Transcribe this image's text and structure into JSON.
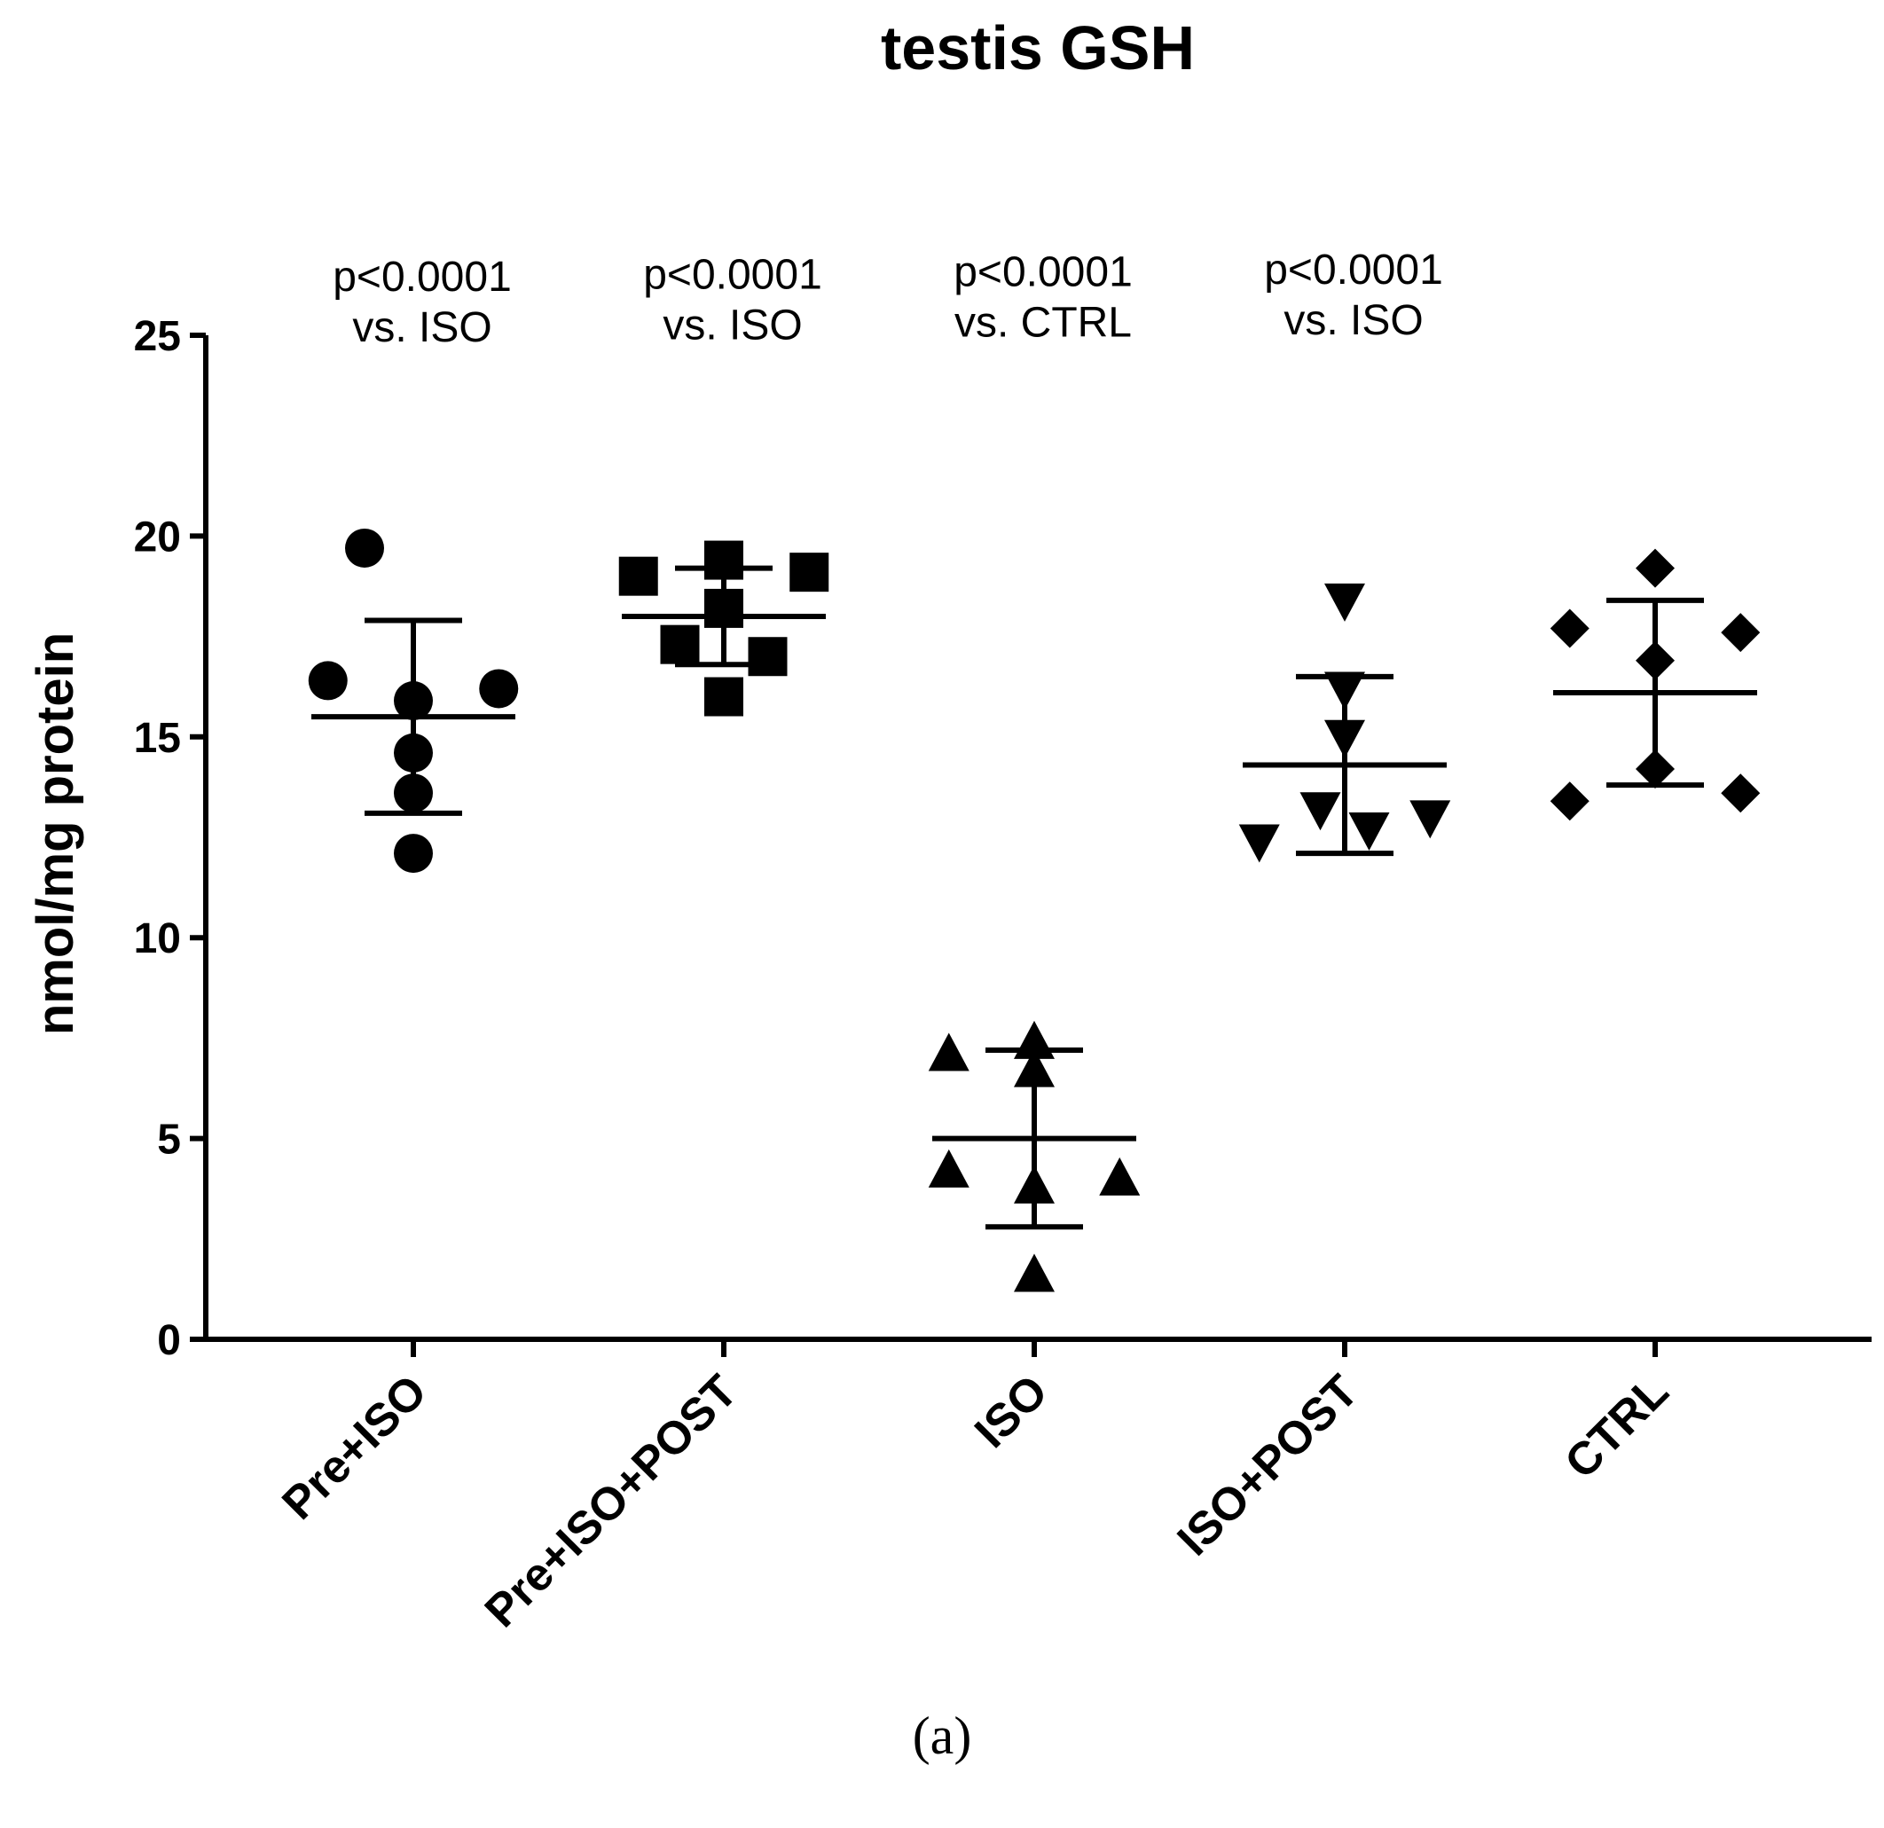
{
  "chart_data": {
    "type": "scatter",
    "title": "testis GSH",
    "xlabel": "",
    "ylabel": "nmol/mg protein",
    "ylim": [
      0,
      25
    ],
    "yticks": [
      "0",
      "5",
      "10",
      "15",
      "20",
      "25"
    ],
    "categories": [
      "Pre+ISO",
      "Pre+ISO+POST",
      "ISO",
      "ISO+POST",
      "CTRL"
    ],
    "annotations": [
      [
        "p<0.0001",
        "vs. ISO"
      ],
      [
        "p<0.0001",
        "vs. ISO"
      ],
      [
        "p<0.0001",
        "vs. CTRL"
      ],
      [
        "p<0.0001",
        "vs. ISO"
      ]
    ],
    "series": [
      {
        "name": "Pre+ISO",
        "marker": "circle",
        "mean": 15.5,
        "sd_low": 13.1,
        "sd_high": 17.9,
        "points": [
          [
            -1,
            19.7
          ],
          [
            -1.75,
            16.4
          ],
          [
            1.75,
            16.2
          ],
          [
            0,
            15.9
          ],
          [
            0,
            14.6
          ],
          [
            0,
            13.6
          ],
          [
            0,
            12.1
          ]
        ]
      },
      {
        "name": "Pre+ISO+POST",
        "marker": "square",
        "mean": 18.0,
        "sd_low": 16.8,
        "sd_high": 19.2,
        "points": [
          [
            0,
            19.4
          ],
          [
            -1.75,
            19.0
          ],
          [
            1.75,
            19.1
          ],
          [
            0,
            18.2
          ],
          [
            -0.9,
            17.3
          ],
          [
            0.9,
            17.0
          ],
          [
            0,
            16.0
          ]
        ]
      },
      {
        "name": "ISO",
        "marker": "triangle-up",
        "mean": 5.0,
        "sd_low": 2.8,
        "sd_high": 7.2,
        "points": [
          [
            -1.75,
            7.1
          ],
          [
            0,
            7.4
          ],
          [
            0,
            6.7
          ],
          [
            -1.75,
            4.2
          ],
          [
            1.75,
            4.0
          ],
          [
            0,
            3.8
          ],
          [
            0,
            1.6
          ]
        ]
      },
      {
        "name": "ISO+POST",
        "marker": "triangle-down",
        "mean": 14.3,
        "sd_low": 12.1,
        "sd_high": 16.5,
        "points": [
          [
            0,
            18.4
          ],
          [
            0,
            16.2
          ],
          [
            0,
            15.0
          ],
          [
            -0.5,
            13.2
          ],
          [
            1.75,
            13.0
          ],
          [
            0.5,
            12.7
          ],
          [
            -1.75,
            12.4
          ]
        ]
      },
      {
        "name": "CTRL",
        "marker": "diamond",
        "mean": 16.1,
        "sd_low": 13.8,
        "sd_high": 18.4,
        "points": [
          [
            0,
            19.2
          ],
          [
            -1.75,
            17.7
          ],
          [
            1.75,
            17.6
          ],
          [
            0,
            16.9
          ],
          [
            0,
            14.2
          ],
          [
            1.75,
            13.6
          ],
          [
            -1.75,
            13.4
          ]
        ]
      }
    ]
  },
  "caption": "(a)"
}
